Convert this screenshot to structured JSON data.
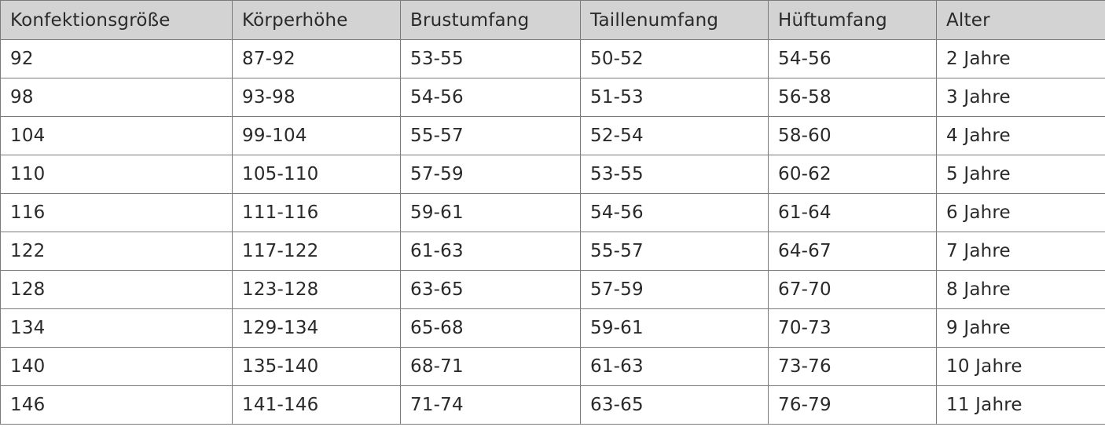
{
  "table": {
    "headers": [
      "Konfektionsgröße",
      "Körperhöhe",
      "Brustumfang",
      "Taillenumfang",
      "Hüftumfang",
      "Alter"
    ],
    "rows": [
      [
        "92",
        "87-92",
        "53-55",
        "50-52",
        "54-56",
        "2 Jahre"
      ],
      [
        "98",
        "93-98",
        "54-56",
        "51-53",
        "56-58",
        "3 Jahre"
      ],
      [
        "104",
        "99-104",
        "55-57",
        "52-54",
        "58-60",
        "4 Jahre"
      ],
      [
        "110",
        "105-110",
        "57-59",
        "53-55",
        "60-62",
        "5 Jahre"
      ],
      [
        "116",
        "111-116",
        "59-61",
        "54-56",
        "61-64",
        "6 Jahre"
      ],
      [
        "122",
        "117-122",
        "61-63",
        "55-57",
        "64-67",
        "7 Jahre"
      ],
      [
        "128",
        "123-128",
        "63-65",
        "57-59",
        "67-70",
        "8 Jahre"
      ],
      [
        "134",
        "129-134",
        "65-68",
        "59-61",
        "70-73",
        "9 Jahre"
      ],
      [
        "140",
        "135-140",
        "68-71",
        "61-63",
        "73-76",
        "10 Jahre"
      ],
      [
        "146",
        "141-146",
        "71-74",
        "63-65",
        "76-79",
        "11 Jahre"
      ]
    ]
  },
  "colors": {
    "header_bg": "#d3d3d3",
    "border": "#7a7a7a",
    "text": "#2a2a2a"
  }
}
